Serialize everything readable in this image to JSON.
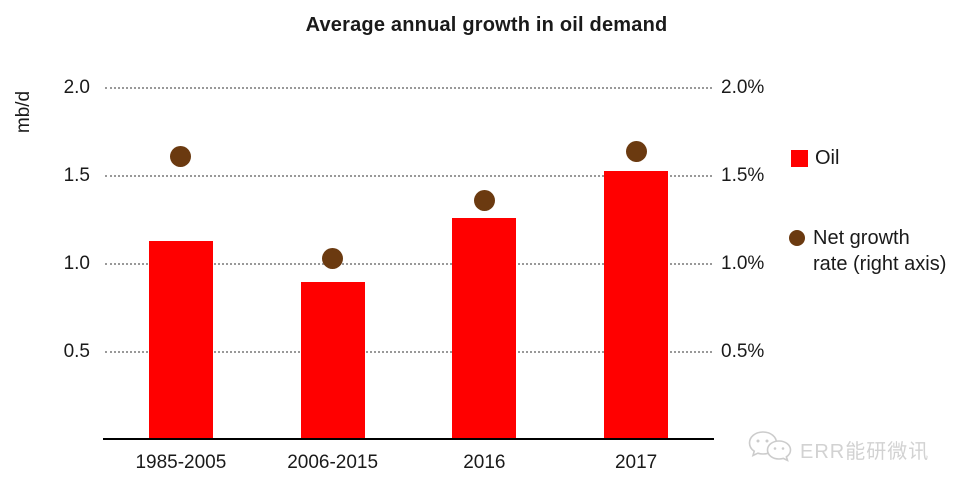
{
  "title": "Average annual growth in oil demand",
  "legend": {
    "oil": "Oil",
    "rate_line1": "Net growth",
    "rate_line2": "rate (right axis)"
  },
  "watermark": {
    "text": "ERR能研微讯",
    "logo": "wechat-logo-icon"
  },
  "colors": {
    "bar": "#ff0000",
    "dot": "#6b3a10",
    "gridline": "#999999",
    "axis_line": "#000000",
    "text": "#1a1a1a",
    "watermark": "#d2d2d2"
  },
  "chart_data": {
    "type": "bar",
    "title": "Average annual growth in oil demand",
    "categories": [
      "1985-2005",
      "2006-2015",
      "2016",
      "2017"
    ],
    "series": [
      {
        "name": "Oil",
        "type": "bar",
        "axis": "left",
        "color": "#ff0000",
        "values": [
          1.13,
          0.9,
          1.26,
          1.53
        ]
      },
      {
        "name": "Net growth rate (right axis)",
        "type": "scatter",
        "axis": "right",
        "color": "#6b3a10",
        "values": [
          1.61,
          1.03,
          1.36,
          1.64
        ]
      }
    ],
    "ylabel_left": "mb/d",
    "axis_ticks": {
      "values": [
        2.0,
        1.5,
        1.0,
        0.5
      ],
      "left_labels": [
        "2.0",
        "1.5",
        "1.0",
        "0.5"
      ],
      "right_labels": [
        "2.0%",
        "1.5%",
        "1.0%",
        "0.5%"
      ]
    },
    "left_axis_range": [
      0,
      2.0
    ],
    "right_axis_range_pct": [
      0,
      2.0
    ],
    "grid": "horizontal-dotted",
    "legend_position": "right"
  }
}
